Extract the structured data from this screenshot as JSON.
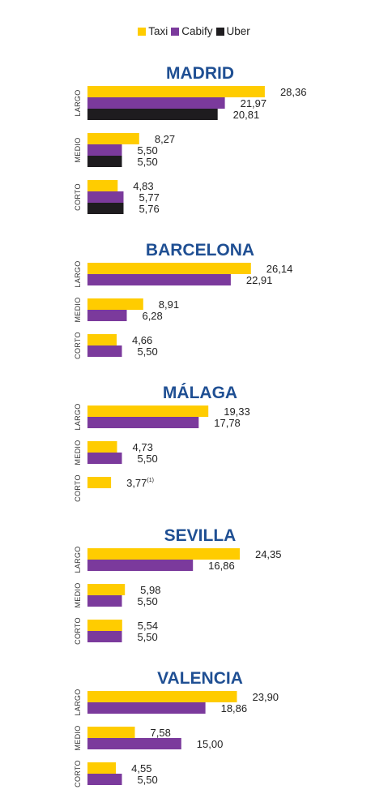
{
  "legend": [
    {
      "name": "Taxi",
      "color": "#ffcc00"
    },
    {
      "name": "Cabify",
      "color": "#7b3a9c"
    },
    {
      "name": "Uber",
      "color": "#1e1c1f"
    }
  ],
  "chart_data": {
    "type": "bar",
    "orientation": "horizontal",
    "series": [
      "Taxi",
      "Cabify",
      "Uber"
    ],
    "cities": [
      {
        "name": "MADRID",
        "groups": [
          {
            "label": "LARGO",
            "bars": [
              {
                "series": "Taxi",
                "value": 28.36,
                "label": "28,36"
              },
              {
                "series": "Cabify",
                "value": 21.97,
                "label": "21,97"
              },
              {
                "series": "Uber",
                "value": 20.81,
                "label": "20,81"
              }
            ]
          },
          {
            "label": "MEDIO",
            "bars": [
              {
                "series": "Taxi",
                "value": 8.27,
                "label": "8,27"
              },
              {
                "series": "Cabify",
                "value": 5.5,
                "label": "5,50"
              },
              {
                "series": "Uber",
                "value": 5.5,
                "label": "5,50"
              }
            ]
          },
          {
            "label": "CORTO",
            "bars": [
              {
                "series": "Taxi",
                "value": 4.83,
                "label": "4,83"
              },
              {
                "series": "Cabify",
                "value": 5.77,
                "label": "5,77"
              },
              {
                "series": "Uber",
                "value": 5.76,
                "label": "5,76"
              }
            ]
          }
        ]
      },
      {
        "name": "BARCELONA",
        "groups": [
          {
            "label": "LARGO",
            "bars": [
              {
                "series": "Taxi",
                "value": 26.14,
                "label": "26,14"
              },
              {
                "series": "Cabify",
                "value": 22.91,
                "label": "22,91"
              }
            ]
          },
          {
            "label": "MEDIO",
            "bars": [
              {
                "series": "Taxi",
                "value": 8.91,
                "label": "8,91"
              },
              {
                "series": "Cabify",
                "value": 6.28,
                "label": "6,28"
              }
            ]
          },
          {
            "label": "CORTO",
            "bars": [
              {
                "series": "Taxi",
                "value": 4.66,
                "label": "4,66"
              },
              {
                "series": "Cabify",
                "value": 5.5,
                "label": "5,50"
              }
            ]
          }
        ]
      },
      {
        "name": "MÁLAGA",
        "groups": [
          {
            "label": "LARGO",
            "bars": [
              {
                "series": "Taxi",
                "value": 19.33,
                "label": "19,33"
              },
              {
                "series": "Cabify",
                "value": 17.78,
                "label": "17,78"
              }
            ]
          },
          {
            "label": "MEDIO",
            "bars": [
              {
                "series": "Taxi",
                "value": 4.73,
                "label": "4,73"
              },
              {
                "series": "Cabify",
                "value": 5.5,
                "label": "5,50"
              }
            ]
          },
          {
            "label": "CORTO",
            "bars": [
              {
                "series": "Taxi",
                "value": 3.77,
                "label": "3,77",
                "sup": "(1)"
              }
            ]
          }
        ]
      },
      {
        "name": "SEVILLA",
        "groups": [
          {
            "label": "LARGO",
            "bars": [
              {
                "series": "Taxi",
                "value": 24.35,
                "label": "24,35"
              },
              {
                "series": "Cabify",
                "value": 16.86,
                "label": "16,86"
              }
            ]
          },
          {
            "label": "MEDIO",
            "bars": [
              {
                "series": "Taxi",
                "value": 5.98,
                "label": "5,98"
              },
              {
                "series": "Cabify",
                "value": 5.5,
                "label": "5,50"
              }
            ]
          },
          {
            "label": "CORTO",
            "bars": [
              {
                "series": "Taxi",
                "value": 5.54,
                "label": "5,54"
              },
              {
                "series": "Cabify",
                "value": 5.5,
                "label": "5,50"
              }
            ]
          }
        ]
      },
      {
        "name": "VALENCIA",
        "groups": [
          {
            "label": "LARGO",
            "bars": [
              {
                "series": "Taxi",
                "value": 23.9,
                "label": "23,90"
              },
              {
                "series": "Cabify",
                "value": 18.86,
                "label": "18,86"
              }
            ]
          },
          {
            "label": "MEDIO",
            "bars": [
              {
                "series": "Taxi",
                "value": 7.58,
                "label": "7,58"
              },
              {
                "series": "Cabify",
                "value": 15.0,
                "label": "15,00"
              }
            ]
          },
          {
            "label": "CORTO",
            "bars": [
              {
                "series": "Taxi",
                "value": 4.55,
                "label": "4,55"
              },
              {
                "series": "Cabify",
                "value": 5.5,
                "label": "5,50"
              }
            ]
          }
        ]
      }
    ]
  }
}
